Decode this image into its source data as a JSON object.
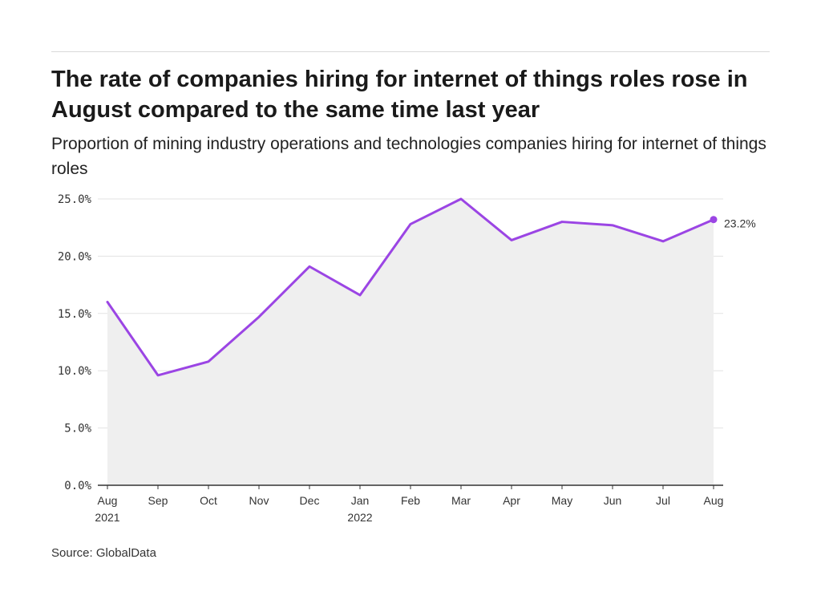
{
  "title": "The rate of companies hiring for internet of things roles rose in August compared to the same time last year",
  "subtitle": "Proportion of mining industry operations and technologies companies hiring for internet of things roles",
  "source": "Source: GlobalData",
  "colors": {
    "line": "#9b45e4",
    "area": "#efefef",
    "grid": "#e3e3e3",
    "axis": "#333333"
  },
  "chart_data": {
    "type": "area",
    "categories": [
      "Aug 2021",
      "Sep",
      "Oct",
      "Nov",
      "Dec",
      "Jan 2022",
      "Feb",
      "Mar",
      "Apr",
      "May",
      "Jun",
      "Jul",
      "Aug"
    ],
    "tick_labels": [
      [
        "Aug",
        "2021"
      ],
      [
        "Sep"
      ],
      [
        "Oct"
      ],
      [
        "Nov"
      ],
      [
        "Dec"
      ],
      [
        "Jan",
        "2022"
      ],
      [
        "Feb"
      ],
      [
        "Mar"
      ],
      [
        "Apr"
      ],
      [
        "May"
      ],
      [
        "Jun"
      ],
      [
        "Jul"
      ],
      [
        "Aug"
      ]
    ],
    "values": [
      16.0,
      9.6,
      10.8,
      14.7,
      19.1,
      16.6,
      22.8,
      25.0,
      21.4,
      23.0,
      22.7,
      21.3,
      23.2
    ],
    "ylim": [
      0,
      25
    ],
    "y_ticks": [
      0,
      5,
      10,
      15,
      20,
      25
    ],
    "y_tick_labels": [
      "0.0%",
      "5.0%",
      "10.0%",
      "15.0%",
      "20.0%",
      "25.0%"
    ],
    "end_label": "23.2%",
    "xlabel": "",
    "ylabel": "",
    "grid": true
  }
}
